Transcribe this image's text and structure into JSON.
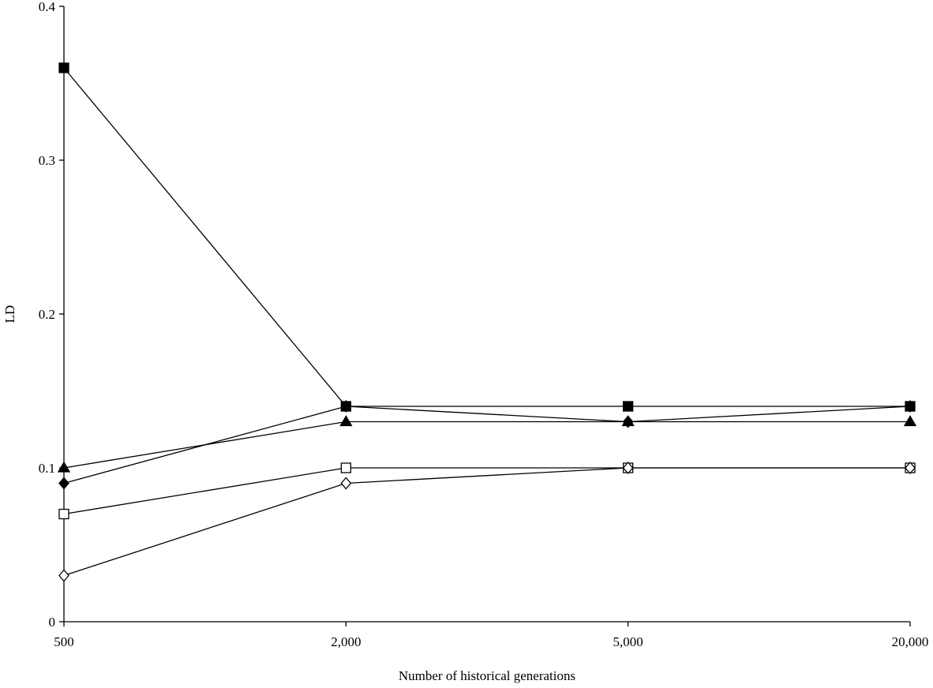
{
  "chart_data": {
    "type": "line",
    "title": "",
    "xlabel": "Number of historical generations",
    "ylabel": "LD",
    "categories": [
      "500",
      "2,000",
      "5,000",
      "20,000"
    ],
    "y_ticks": [
      "0",
      "0.1",
      "0.2",
      "0.3",
      "0.4"
    ],
    "ylim": [
      0,
      0.4
    ],
    "grid": false,
    "legend": "none",
    "series": [
      {
        "marker": "filled-square",
        "values": [
          0.36,
          0.14,
          0.14,
          0.14
        ]
      },
      {
        "marker": "filled-triangle",
        "values": [
          0.1,
          0.13,
          0.13,
          0.13
        ]
      },
      {
        "marker": "filled-diamond",
        "values": [
          0.09,
          0.14,
          0.13,
          0.14
        ]
      },
      {
        "marker": "open-square",
        "values": [
          0.07,
          0.1,
          0.1,
          0.1
        ]
      },
      {
        "marker": "open-diamond",
        "values": [
          0.03,
          0.09,
          0.1,
          0.1
        ]
      }
    ]
  }
}
